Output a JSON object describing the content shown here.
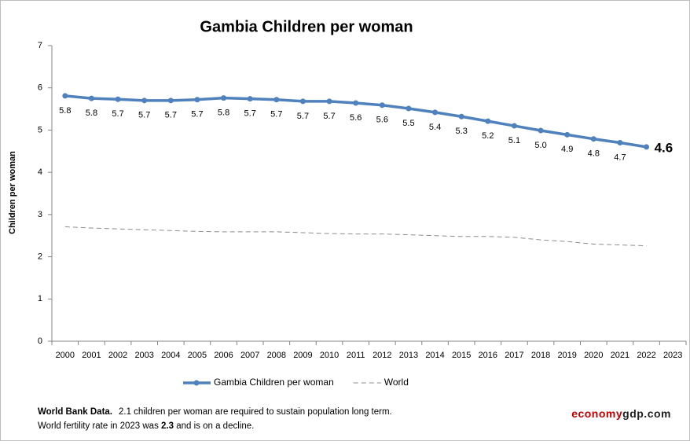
{
  "chart_data": {
    "type": "line",
    "title": "Gambia Children per woman",
    "y_label": "Children per woman",
    "categories": [
      "2000",
      "2001",
      "2002",
      "2003",
      "2004",
      "2005",
      "2006",
      "2007",
      "2008",
      "2009",
      "2010",
      "2011",
      "2012",
      "2013",
      "2014",
      "2015",
      "2016",
      "2017",
      "2018",
      "2019",
      "2020",
      "2021",
      "2022",
      "2023"
    ],
    "series": [
      {
        "name": "Gambia Children per woman",
        "color": "#4f81bd",
        "style": "solid",
        "values": [
          5.81,
          5.75,
          5.73,
          5.7,
          5.7,
          5.72,
          5.76,
          5.74,
          5.72,
          5.68,
          5.68,
          5.64,
          5.59,
          5.51,
          5.42,
          5.32,
          5.21,
          5.1,
          4.99,
          4.89,
          4.79,
          4.7,
          4.6,
          null
        ],
        "value_labels": [
          "5.8",
          "5.8",
          "5.7",
          "5.7",
          "5.7",
          "5.7",
          "5.8",
          "5.7",
          "5.7",
          "5.7",
          "5.7",
          "5.6",
          "5.6",
          "5.5",
          "5.4",
          "5.3",
          "5.2",
          "5.1",
          "5.0",
          "4.9",
          "4.8",
          "4.7",
          "4.6",
          null
        ]
      },
      {
        "name": "World",
        "color": "#8c8c8c",
        "style": "dashed",
        "values": [
          2.71,
          2.68,
          2.66,
          2.64,
          2.62,
          2.6,
          2.59,
          2.59,
          2.59,
          2.57,
          2.55,
          2.54,
          2.54,
          2.52,
          2.5,
          2.48,
          2.48,
          2.46,
          2.4,
          2.36,
          2.3,
          2.28,
          2.26,
          null
        ]
      }
    ],
    "ylim": [
      0,
      7
    ],
    "yticks": [
      0,
      1,
      2,
      3,
      4,
      5,
      6,
      7
    ],
    "grid": false,
    "legend": "bottom"
  },
  "footer": {
    "source": "World Bank Data.",
    "line1": "2.1 children per woman are required to sustain population long term.",
    "line2_a": "World fertility rate in 2023 was ",
    "line2_b": "2.3",
    "line2_c": " and is on a decline.",
    "brand_a": "economy",
    "brand_b": "gdp.com"
  }
}
